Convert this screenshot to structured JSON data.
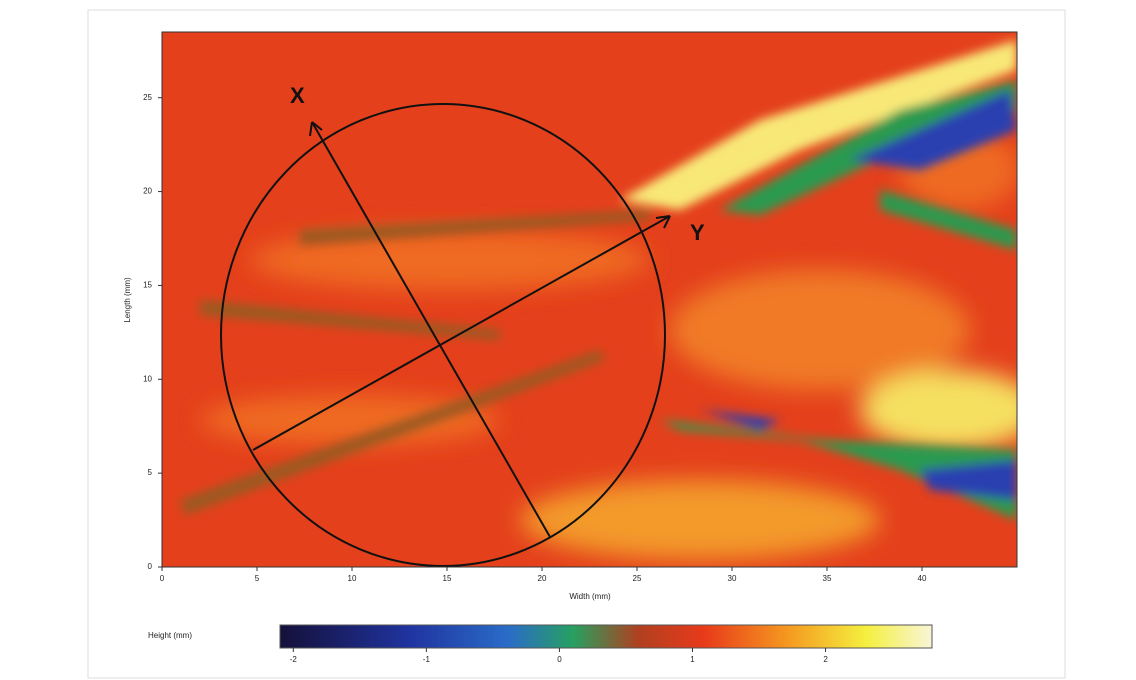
{
  "chart_data": {
    "type": "heatmap",
    "x_label": "Width (mm)",
    "y_label": "Length (mm)",
    "xlim": [
      0,
      45
    ],
    "xticks": [
      0,
      5,
      10,
      15,
      20,
      25,
      30,
      35,
      40
    ],
    "ylim": [
      0,
      28.5
    ],
    "yticks": [
      0,
      5,
      10,
      15,
      20,
      25
    ],
    "colorbar": {
      "label": "Height (mm)",
      "lim": [
        -2.1,
        2.8
      ],
      "ticks": [
        -2,
        -1,
        0,
        1,
        2
      ]
    },
    "annotations": [
      "X",
      "Y"
    ]
  }
}
